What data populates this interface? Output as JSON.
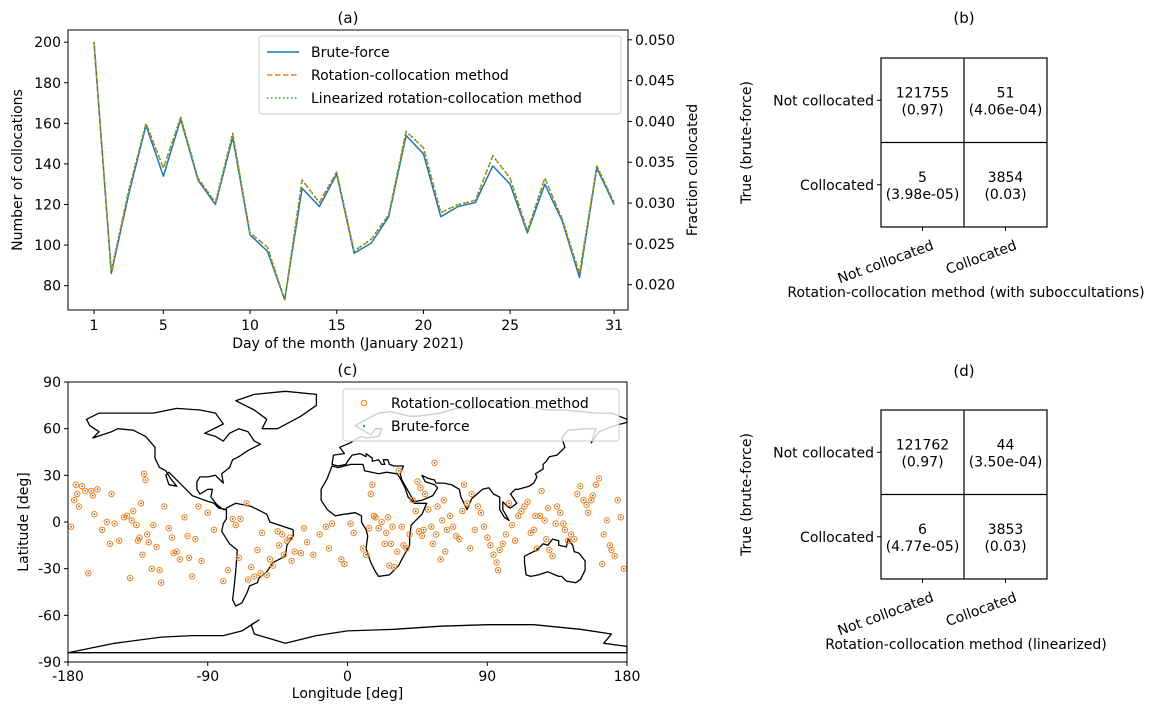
{
  "chart_data": [
    {
      "id": "a",
      "type": "line",
      "title": "(a)",
      "xlabel": "Day of the month (January 2021)",
      "ylabel": "Number of collocations",
      "y2label": "Fraction collocated",
      "xlim": [
        -0.5,
        31.8
      ],
      "ylim": [
        68,
        206
      ],
      "y2lim": [
        0.0169,
        0.0512
      ],
      "xticks": [
        1,
        5,
        10,
        15,
        20,
        25,
        31
      ],
      "yticks": [
        80,
        100,
        120,
        140,
        160,
        180,
        200
      ],
      "y2ticks": [
        "0.020",
        "0.025",
        "0.030",
        "0.035",
        "0.040",
        "0.045",
        "0.050"
      ],
      "legend_position": "upper-right",
      "x": [
        1,
        2,
        3,
        4,
        5,
        6,
        7,
        8,
        9,
        10,
        11,
        12,
        13,
        14,
        15,
        16,
        17,
        18,
        19,
        20,
        21,
        22,
        23,
        24,
        25,
        26,
        27,
        28,
        29,
        30,
        31
      ],
      "series": [
        {
          "name": "Brute-force",
          "color": "#1f77b4",
          "dash": "solid",
          "values": [
            200,
            86,
            125,
            159,
            134,
            162,
            132,
            120,
            153,
            105,
            97,
            73,
            128,
            119,
            135,
            96,
            101,
            114,
            154,
            145,
            114,
            119,
            121,
            139,
            130,
            106,
            130,
            112,
            84,
            138,
            120
          ]
        },
        {
          "name": "Rotation-collocation method",
          "color": "#ff7f0e",
          "dash": "dashed",
          "values": [
            200,
            87,
            127,
            160,
            138,
            163,
            133,
            121,
            155,
            106,
            99,
            73,
            132,
            121,
            136,
            97,
            103,
            115,
            156,
            148,
            116,
            120,
            122,
            144,
            133,
            107,
            133,
            113,
            86,
            139,
            121
          ]
        },
        {
          "name": "Linearized rotation-collocation method",
          "color": "#2ca02c",
          "dash": "dotted",
          "values": [
            200,
            87,
            127,
            160,
            138,
            163,
            133,
            121,
            155,
            106,
            99,
            73,
            132,
            121,
            136,
            97,
            103,
            115,
            156,
            148,
            116,
            120,
            122,
            144,
            133,
            107,
            133,
            113,
            86,
            139,
            121
          ]
        }
      ]
    },
    {
      "id": "b",
      "type": "table",
      "title": "(b)",
      "xlabel": "Rotation-collocation method (with suboccultations)",
      "ylabel": "True (brute-force)",
      "row_labels": [
        "Not collocated",
        "Collocated"
      ],
      "col_labels": [
        "Not collocated",
        "Collocated"
      ],
      "cells": [
        [
          {
            "count": "121755",
            "fraction": "(0.97)"
          },
          {
            "count": "51",
            "fraction": "(4.06e-04)"
          }
        ],
        [
          {
            "count": "5",
            "fraction": "(3.98e-05)"
          },
          {
            "count": "3854",
            "fraction": "(0.03)"
          }
        ]
      ]
    },
    {
      "id": "c",
      "type": "scatter",
      "title": "(c)",
      "xlabel": "Longitude [deg]",
      "ylabel": "Latitude [deg]",
      "xlim": [
        -180,
        180
      ],
      "ylim": [
        -90,
        90
      ],
      "xticks": [
        -180,
        -90,
        0,
        90,
        180
      ],
      "yticks": [
        90,
        60,
        30,
        0,
        -30,
        -60,
        -90
      ],
      "legend_position": "upper-right",
      "legend": [
        {
          "name": "Rotation-collocation method",
          "color": "#ff7f0e",
          "marker": "open-circle"
        },
        {
          "name": "Brute-force",
          "color": "#1f77b4",
          "marker": "small-dot"
        }
      ],
      "points": [
        [
          -178,
          -3
        ],
        [
          -176,
          14
        ],
        [
          -175,
          24
        ],
        [
          -174,
          18
        ],
        [
          -173,
          10
        ],
        [
          -171,
          23
        ],
        [
          -169,
          20
        ],
        [
          -167,
          -33
        ],
        [
          -165,
          20
        ],
        [
          -164,
          17
        ],
        [
          -163,
          5
        ],
        [
          -161,
          21
        ],
        [
          -158,
          -5
        ],
        [
          -155,
          0
        ],
        [
          -153,
          -14
        ],
        [
          -152,
          18
        ],
        [
          -150,
          -1
        ],
        [
          -147,
          -12
        ],
        [
          -144,
          3
        ],
        [
          -142,
          4
        ],
        [
          -140,
          -36
        ],
        [
          -139,
          1
        ],
        [
          -138,
          7
        ],
        [
          -136,
          -2
        ],
        [
          -135,
          -12
        ],
        [
          -134,
          -10
        ],
        [
          -133,
          12
        ],
        [
          -132,
          -21
        ],
        [
          -131,
          31
        ],
        [
          -130,
          27
        ],
        [
          -129,
          -8
        ],
        [
          -128,
          -13
        ],
        [
          -126,
          -30
        ],
        [
          -125,
          -2
        ],
        [
          -123,
          -16
        ],
        [
          -121,
          -31
        ],
        [
          -120,
          -39
        ],
        [
          -118,
          10
        ],
        [
          -115,
          -4
        ],
        [
          -113,
          -10
        ],
        [
          -112,
          -20
        ],
        [
          -110,
          -19
        ],
        [
          -108,
          -24
        ],
        [
          -105,
          3
        ],
        [
          -103,
          -9
        ],
        [
          -102,
          -23
        ],
        [
          -100,
          -35
        ],
        [
          -98,
          -11
        ],
        [
          -96,
          10
        ],
        [
          -94,
          -25
        ],
        [
          -90,
          6
        ],
        [
          -86,
          -5
        ],
        [
          -80,
          -38
        ],
        [
          -77,
          -31
        ],
        [
          -74,
          2
        ],
        [
          -72,
          -2
        ],
        [
          -70,
          -23
        ],
        [
          -69,
          2
        ],
        [
          -65,
          12
        ],
        [
          -64,
          -37
        ],
        [
          -62,
          -29
        ],
        [
          -60,
          -35
        ],
        [
          -58,
          -18
        ],
        [
          -56,
          -33
        ],
        [
          -55,
          -7
        ],
        [
          -52,
          -34
        ],
        [
          -50,
          -24
        ],
        [
          -48,
          -28
        ],
        [
          -45,
          -6
        ],
        [
          -44,
          -15
        ],
        [
          -42,
          -8
        ],
        [
          -41,
          -21
        ],
        [
          -39,
          -12
        ],
        [
          -37,
          -10
        ],
        [
          -36,
          -25
        ],
        [
          -34,
          -19
        ],
        [
          -30,
          -20
        ],
        [
          -28,
          -4
        ],
        [
          -26,
          -13
        ],
        [
          -22,
          -21
        ],
        [
          -18,
          -8
        ],
        [
          -14,
          -3
        ],
        [
          -12,
          -17
        ],
        [
          -10,
          -1
        ],
        [
          -4,
          -24
        ],
        [
          -2,
          -27
        ],
        [
          2,
          -1
        ],
        [
          4,
          -7
        ],
        [
          10,
          -17
        ],
        [
          12,
          -21
        ],
        [
          14,
          -4
        ],
        [
          15,
          18
        ],
        [
          16,
          24
        ],
        [
          17,
          4
        ],
        [
          18,
          3
        ],
        [
          20,
          -4
        ],
        [
          22,
          0
        ],
        [
          24,
          -14
        ],
        [
          25,
          -7
        ],
        [
          26,
          3
        ],
        [
          27,
          -28
        ],
        [
          28,
          -14
        ],
        [
          29,
          -3
        ],
        [
          30,
          -29
        ],
        [
          32,
          -19
        ],
        [
          33,
          33
        ],
        [
          35,
          -3
        ],
        [
          36,
          -15
        ],
        [
          38,
          -17
        ],
        [
          40,
          -8
        ],
        [
          42,
          14
        ],
        [
          44,
          7
        ],
        [
          45,
          26
        ],
        [
          46,
          -6
        ],
        [
          47,
          22
        ],
        [
          48,
          -9
        ],
        [
          49,
          -5
        ],
        [
          50,
          18
        ],
        [
          52,
          8
        ],
        [
          54,
          -3
        ],
        [
          55,
          -14
        ],
        [
          56,
          38
        ],
        [
          57,
          -8
        ],
        [
          58,
          10
        ],
        [
          60,
          -24
        ],
        [
          61,
          1
        ],
        [
          62,
          14
        ],
        [
          63,
          -19
        ],
        [
          64,
          -5
        ],
        [
          66,
          4
        ],
        [
          68,
          -3
        ],
        [
          70,
          -9
        ],
        [
          72,
          -11
        ],
        [
          74,
          7
        ],
        [
          75,
          24
        ],
        [
          77,
          12
        ],
        [
          79,
          -17
        ],
        [
          80,
          18
        ],
        [
          82,
          -5
        ],
        [
          84,
          10
        ],
        [
          86,
          6
        ],
        [
          88,
          -3
        ],
        [
          90,
          -10
        ],
        [
          92,
          -15
        ],
        [
          94,
          -21
        ],
        [
          96,
          -26
        ],
        [
          97,
          -31
        ],
        [
          98,
          -18
        ],
        [
          100,
          -14
        ],
        [
          102,
          -8
        ],
        [
          104,
          12
        ],
        [
          106,
          -2
        ],
        [
          108,
          -12
        ],
        [
          110,
          4
        ],
        [
          112,
          7
        ],
        [
          114,
          10
        ],
        [
          116,
          13
        ],
        [
          118,
          -7
        ],
        [
          120,
          -5
        ],
        [
          121,
          4
        ],
        [
          122,
          -17
        ],
        [
          124,
          4
        ],
        [
          125,
          20
        ],
        [
          127,
          1
        ],
        [
          128,
          -11
        ],
        [
          129,
          9
        ],
        [
          130,
          -18
        ],
        [
          132,
          -22
        ],
        [
          134,
          -1
        ],
        [
          135,
          10
        ],
        [
          137,
          6
        ],
        [
          139,
          -1
        ],
        [
          140,
          -5
        ],
        [
          142,
          -12
        ],
        [
          144,
          -8
        ],
        [
          146,
          -11
        ],
        [
          148,
          18
        ],
        [
          150,
          23
        ],
        [
          152,
          14
        ],
        [
          154,
          11
        ],
        [
          155,
          6
        ],
        [
          157,
          14
        ],
        [
          158,
          17
        ],
        [
          160,
          24
        ],
        [
          162,
          28
        ],
        [
          164,
          -27
        ],
        [
          165,
          -8
        ],
        [
          167,
          1
        ],
        [
          169,
          -15
        ],
        [
          170,
          -18
        ],
        [
          172,
          -22
        ],
        [
          174,
          14
        ],
        [
          176,
          3
        ],
        [
          178,
          -30
        ]
      ]
    },
    {
      "id": "d",
      "type": "table",
      "title": "(d)",
      "xlabel": "Rotation-collocation method (linearized)",
      "ylabel": "True (brute-force)",
      "row_labels": [
        "Not collocated",
        "Collocated"
      ],
      "col_labels": [
        "Not collocated",
        "Collocated"
      ],
      "cells": [
        [
          {
            "count": "121762",
            "fraction": "(0.97)"
          },
          {
            "count": "44",
            "fraction": "(3.50e-04)"
          }
        ],
        [
          {
            "count": "6",
            "fraction": "(4.77e-05)"
          },
          {
            "count": "3853",
            "fraction": "(0.03)"
          }
        ]
      ]
    }
  ]
}
